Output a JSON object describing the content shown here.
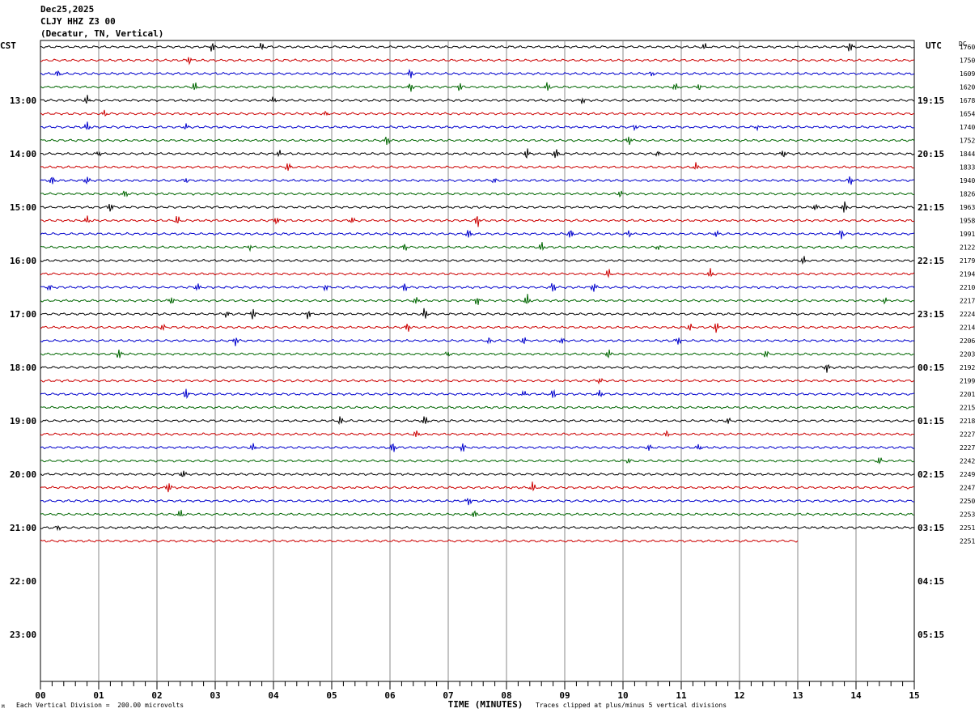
{
  "header": {
    "date": "Dec25,2025",
    "station": "CLJY HHZ Z3 00",
    "location": "(Decatur, TN, Vertical)"
  },
  "labels": {
    "left_tz": "CST",
    "right_tz": "UTC",
    "dc_header": "DC",
    "xlabel": "TIME (MINUTES)",
    "footer_left": "Each Vertical Division =  200.00 microvolts",
    "footer_right": "Traces clipped at plus/minus 5 vertical divisions",
    "logo_mark": "M"
  },
  "chart_data": {
    "type": "line",
    "title": "CLJY HHZ Z3 00",
    "xlabel": "TIME (MINUTES)",
    "xlim": [
      0,
      15
    ],
    "x_ticks": [
      "00",
      "01",
      "02",
      "03",
      "04",
      "05",
      "06",
      "07",
      "08",
      "09",
      "10",
      "11",
      "12",
      "13",
      "14",
      "15"
    ],
    "left_hour_labels": [
      "13:00",
      "14:00",
      "15:00",
      "16:00",
      "17:00",
      "18:00",
      "19:00",
      "20:00",
      "21:00",
      "22:00",
      "23:00"
    ],
    "right_hour_labels": [
      "19:15",
      "20:15",
      "21:15",
      "22:15",
      "23:15",
      "00:15",
      "01:15",
      "02:15",
      "03:15",
      "04:15",
      "05:15"
    ],
    "trace_colors": [
      "#000000",
      "#cc0000",
      "#0000cc",
      "#006600"
    ],
    "trace_count": 38,
    "last_trace_end_minute": 13,
    "dc_offsets": [
      1760,
      1750,
      1609,
      1620,
      1678,
      1654,
      1740,
      1752,
      1844,
      1833,
      1940,
      1826,
      1963,
      1958,
      1991,
      2122,
      2179,
      2194,
      2210,
      2217,
      2224,
      2214,
      2206,
      2203,
      2192,
      2199,
      2201,
      2215,
      2218,
      2227,
      2227,
      2242,
      2249,
      2247,
      2250,
      2253,
      2251,
      2251
    ],
    "bursts": [
      [
        [
          2.95,
          6
        ],
        [
          3.8,
          5
        ],
        [
          11.4,
          4
        ],
        [
          13.9,
          7
        ]
      ],
      [
        [
          2.55,
          5
        ]
      ],
      [
        [
          0.3,
          4
        ],
        [
          6.35,
          6
        ],
        [
          10.5,
          3
        ]
      ],
      [
        [
          2.65,
          6
        ],
        [
          6.35,
          6
        ],
        [
          7.2,
          5
        ],
        [
          8.7,
          6
        ],
        [
          10.9,
          5
        ],
        [
          11.3,
          4
        ]
      ],
      [
        [
          0.8,
          6
        ],
        [
          4.0,
          4
        ],
        [
          9.3,
          4
        ]
      ],
      [
        [
          1.1,
          4
        ],
        [
          4.9,
          3
        ]
      ],
      [
        [
          0.8,
          6
        ],
        [
          2.5,
          4
        ],
        [
          10.2,
          3
        ],
        [
          12.3,
          3
        ]
      ],
      [
        [
          5.95,
          6
        ],
        [
          10.1,
          6
        ]
      ],
      [
        [
          1.0,
          3
        ],
        [
          4.1,
          4
        ],
        [
          8.35,
          7
        ],
        [
          8.85,
          7
        ],
        [
          10.6,
          3
        ],
        [
          12.75,
          5
        ]
      ],
      [
        [
          4.25,
          6
        ],
        [
          11.25,
          5
        ]
      ],
      [
        [
          0.2,
          6
        ],
        [
          0.8,
          5
        ],
        [
          2.5,
          3
        ],
        [
          7.8,
          3
        ],
        [
          13.9,
          6
        ]
      ],
      [
        [
          1.45,
          5
        ],
        [
          9.95,
          4
        ]
      ],
      [
        [
          1.2,
          6
        ],
        [
          13.3,
          4
        ],
        [
          13.8,
          8
        ]
      ],
      [
        [
          0.8,
          5
        ],
        [
          2.35,
          6
        ],
        [
          4.05,
          5
        ],
        [
          5.35,
          4
        ],
        [
          7.5,
          8
        ]
      ],
      [
        [
          7.35,
          6
        ],
        [
          9.1,
          6
        ],
        [
          10.1,
          4
        ],
        [
          11.6,
          4
        ],
        [
          13.75,
          6
        ]
      ],
      [
        [
          3.6,
          3
        ],
        [
          6.25,
          5
        ],
        [
          8.6,
          6
        ],
        [
          10.6,
          3
        ]
      ],
      [
        [
          13.1,
          5
        ]
      ],
      [
        [
          9.75,
          6
        ],
        [
          11.5,
          6
        ]
      ],
      [
        [
          0.15,
          4
        ],
        [
          2.7,
          5
        ],
        [
          4.9,
          4
        ],
        [
          6.25,
          6
        ],
        [
          8.8,
          7
        ],
        [
          9.5,
          6
        ]
      ],
      [
        [
          2.25,
          5
        ],
        [
          6.45,
          5
        ],
        [
          7.5,
          6
        ],
        [
          8.35,
          8
        ],
        [
          14.5,
          4
        ]
      ],
      [
        [
          3.2,
          4
        ],
        [
          3.65,
          7
        ],
        [
          4.6,
          6
        ],
        [
          6.6,
          8
        ]
      ],
      [
        [
          2.1,
          4
        ],
        [
          6.3,
          6
        ],
        [
          11.15,
          5
        ],
        [
          11.6,
          7
        ]
      ],
      [
        [
          3.35,
          6
        ],
        [
          7.7,
          4
        ],
        [
          8.3,
          5
        ],
        [
          8.95,
          4
        ],
        [
          10.95,
          5
        ]
      ],
      [
        [
          1.35,
          6
        ],
        [
          7.0,
          3
        ],
        [
          9.75,
          6
        ],
        [
          12.45,
          5
        ]
      ],
      [
        [
          13.5,
          6
        ]
      ],
      [
        [
          9.6,
          4
        ]
      ],
      [
        [
          2.5,
          7
        ],
        [
          8.3,
          4
        ],
        [
          8.8,
          6
        ],
        [
          9.6,
          5
        ]
      ],
      [],
      [
        [
          5.15,
          6
        ],
        [
          6.6,
          7
        ],
        [
          11.8,
          4
        ]
      ],
      [
        [
          6.45,
          5
        ],
        [
          10.75,
          4
        ]
      ],
      [
        [
          3.65,
          5
        ],
        [
          6.05,
          7
        ],
        [
          7.25,
          6
        ],
        [
          10.45,
          4
        ],
        [
          11.3,
          4
        ]
      ],
      [
        [
          10.1,
          3
        ],
        [
          14.4,
          5
        ]
      ],
      [
        [
          2.45,
          5
        ]
      ],
      [
        [
          2.2,
          7
        ],
        [
          8.45,
          7
        ]
      ],
      [
        [
          7.35,
          5
        ]
      ],
      [
        [
          2.4,
          6
        ],
        [
          7.45,
          5
        ]
      ],
      [
        [
          0.3,
          3
        ]
      ],
      []
    ]
  }
}
